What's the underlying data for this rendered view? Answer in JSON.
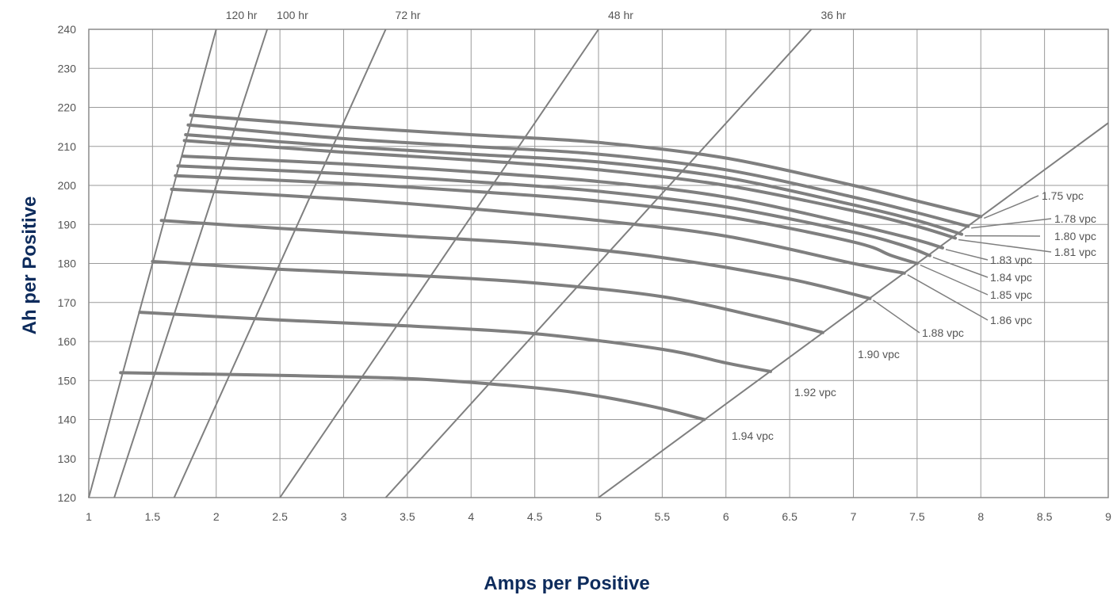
{
  "chart_data": {
    "type": "line",
    "xlabel": "Amps per Positive",
    "ylabel": "Ah per Positive",
    "xlim": [
      1,
      9
    ],
    "ylim": [
      120,
      240
    ],
    "x_ticks": [
      "1",
      "1.5",
      "2",
      "2.5",
      "3",
      "3.5",
      "4",
      "4.5",
      "5",
      "5.5",
      "6",
      "6.5",
      "7",
      "7.5",
      "8",
      "8.5",
      "9"
    ],
    "y_ticks": [
      "120",
      "130",
      "140",
      "150",
      "160",
      "170",
      "180",
      "190",
      "200",
      "210",
      "220",
      "230",
      "240"
    ],
    "grid": true,
    "colors": {
      "curve": "#7f7f7f",
      "grid": "#9a9a9a",
      "axis_title": "#0d2b5c",
      "text": "#555555"
    },
    "rate_lines": [
      {
        "label": "120 hr",
        "points": [
          [
            1.0,
            120
          ],
          [
            2.0,
            240
          ]
        ]
      },
      {
        "label": "100 hr",
        "points": [
          [
            1.2,
            120
          ],
          [
            2.4,
            240
          ]
        ]
      },
      {
        "label": "72 hr",
        "points": [
          [
            1.67,
            120
          ],
          [
            3.33,
            240
          ]
        ]
      },
      {
        "label": "48 hr",
        "points": [
          [
            2.5,
            120
          ],
          [
            5.0,
            240
          ]
        ]
      },
      {
        "label": "36 hr",
        "points": [
          [
            3.33,
            120
          ],
          [
            6.67,
            240
          ]
        ]
      }
    ],
    "endpoint_line": {
      "points": [
        [
          5.0,
          120
        ],
        [
          9.0,
          216
        ]
      ]
    },
    "series": [
      {
        "name": "1.75 vpc",
        "x": [
          1.8,
          3,
          4,
          5,
          6,
          7,
          7.5,
          8.0
        ],
        "y": [
          218,
          215,
          213,
          211,
          207,
          200,
          196,
          192
        ]
      },
      {
        "name": "1.78 vpc",
        "x": [
          1.78,
          3,
          4,
          5,
          6,
          7,
          7.5,
          7.9
        ],
        "y": [
          215.5,
          212,
          210,
          208,
          204,
          197,
          193,
          189.5
        ]
      },
      {
        "name": "1.80 vpc",
        "x": [
          1.76,
          3,
          4,
          5,
          6,
          7,
          7.5,
          7.85
        ],
        "y": [
          213,
          210,
          208,
          206,
          202,
          195,
          191,
          187.5
        ]
      },
      {
        "name": "1.81 vpc",
        "x": [
          1.75,
          3,
          4,
          5,
          6,
          7,
          7.5,
          7.8
        ],
        "y": [
          211.5,
          208.5,
          206.5,
          204,
          200,
          193.5,
          189.5,
          186.5
        ]
      },
      {
        "name": "1.83 vpc",
        "x": [
          1.74,
          3,
          4,
          5,
          6,
          7,
          7.5,
          7.7
        ],
        "y": [
          207.5,
          205.5,
          203.5,
          201,
          197,
          190,
          186,
          184
        ]
      },
      {
        "name": "1.84 vpc",
        "x": [
          1.7,
          3,
          4,
          5,
          6,
          7,
          7.4,
          7.6
        ],
        "y": [
          205,
          203,
          201,
          198.5,
          194.5,
          188,
          184.5,
          182
        ]
      },
      {
        "name": "1.85 vpc",
        "x": [
          1.68,
          3,
          4,
          5,
          6,
          7,
          7.3,
          7.5
        ],
        "y": [
          202.5,
          200.5,
          198.5,
          196,
          192,
          185.5,
          182,
          180
        ]
      },
      {
        "name": "1.86 vpc",
        "x": [
          1.65,
          3,
          4,
          5,
          6,
          7,
          7.4
        ],
        "y": [
          199,
          196.5,
          194,
          191,
          187,
          180,
          177.5
        ]
      },
      {
        "name": "1.88 vpc",
        "x": [
          1.57,
          2.5,
          3.5,
          4.5,
          5.5,
          6.5,
          7.13
        ],
        "y": [
          191,
          189,
          187,
          185,
          181.5,
          176,
          171
        ]
      },
      {
        "name": "1.90 vpc",
        "x": [
          1.5,
          2.5,
          3.5,
          4.5,
          5.5,
          6.3,
          6.76
        ],
        "y": [
          180.5,
          178.5,
          177,
          175,
          171.5,
          166,
          162.3
        ]
      },
      {
        "name": "1.92 vpc",
        "x": [
          1.4,
          2.5,
          3.5,
          4.5,
          5.5,
          6.0,
          6.35
        ],
        "y": [
          167.5,
          165.5,
          164,
          162,
          158,
          154.5,
          152.3
        ]
      },
      {
        "name": "1.94 vpc",
        "x": [
          1.25,
          2.5,
          3.5,
          4.2,
          4.8,
          5.4,
          5.83
        ],
        "y": [
          152,
          151.3,
          150.5,
          149,
          147,
          143.5,
          140
        ]
      }
    ]
  }
}
